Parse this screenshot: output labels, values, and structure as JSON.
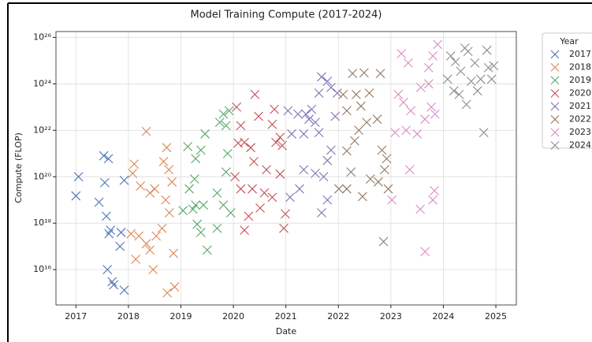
{
  "chart_data": {
    "type": "scatter",
    "title": "Model Training Compute (2017-2024)",
    "x_label": "Date",
    "y_label": "Compute (FLOP)",
    "legend_title": "Year",
    "legend": "outside-right",
    "grid": true,
    "y_log": true,
    "xlim": [
      2016.62,
      2025.39
    ],
    "xticks": [
      2017,
      2018,
      2019,
      2020,
      2021,
      2022,
      2023,
      2024,
      2025
    ],
    "ylim": [
      300000000000000.0,
      1.8e+26
    ],
    "yticks": [
      {
        "value": 1e+16,
        "label": "10¹⁶"
      },
      {
        "value": 1e+18,
        "label": "10¹⁸"
      },
      {
        "value": 1e+20,
        "label": "10²⁰"
      },
      {
        "value": 1e+22,
        "label": "10²²"
      },
      {
        "value": 1e+24,
        "label": "10²⁴"
      },
      {
        "value": 1e+26,
        "label": "10²⁶"
      }
    ],
    "series": [
      {
        "name": "2017",
        "color": "#4c72b0",
        "x": [
          2017.0,
          2017.05,
          2017.44,
          2017.53,
          2017.62,
          2017.55,
          2017.58,
          2017.63,
          2017.6,
          2017.69,
          2017.72,
          2017.86,
          2017.84,
          2017.92,
          2017.92,
          2017.66
        ],
        "values": [
          1.5e+19,
          1e+20,
          8e+18,
          8e+20,
          6e+20,
          5.6e+19,
          2e+18,
          3.5e+17,
          1e+16,
          3000000000000000.0,
          2200000000000000.0,
          4e+17,
          1e+17,
          7e+19,
          1300000000000000.0,
          5e+17
        ]
      },
      {
        "name": "2018",
        "color": "#dd8452",
        "x": [
          2018.11,
          2018.08,
          2018.23,
          2018.34,
          2018.41,
          2018.5,
          2018.05,
          2018.14,
          2018.2,
          2018.34,
          2018.41,
          2018.47,
          2018.53,
          2018.64,
          2018.67,
          2018.73,
          2018.77,
          2018.83,
          2018.78,
          2018.74,
          2018.88,
          2018.86,
          2018.71
        ],
        "values": [
          3.5e+20,
          1.4e+20,
          4e+19,
          9e+21,
          2e+19,
          3e+19,
          3.5e+17,
          2.8e+16,
          2.8e+17,
          1.3e+17,
          7e+16,
          1e+16,
          2.8e+17,
          6e+17,
          4.5e+20,
          1.8e+21,
          2e+20,
          6e+19,
          2.8e+18,
          1000000000000000.0,
          1800000000000000.0,
          5e+16,
          1e+19
        ]
      },
      {
        "name": "2019",
        "color": "#55a868",
        "x": [
          2019.13,
          2019.28,
          2019.26,
          2019.16,
          2019.04,
          2019.23,
          2019.31,
          2019.38,
          2019.43,
          2019.5,
          2019.38,
          2019.46,
          2019.69,
          2019.74,
          2019.81,
          2019.92,
          2019.86,
          2019.89,
          2019.86,
          2019.95,
          2019.81,
          2019.69,
          2019.28
        ],
        "values": [
          2e+21,
          6e+20,
          8e+19,
          3e+19,
          3.5e+18,
          4e+18,
          9e+17,
          4e+17,
          6e+18,
          7e+16,
          1.4e+21,
          7e+21,
          2e+19,
          2.2e+22,
          5e+22,
          7e+22,
          1.6e+22,
          1e+21,
          1.6e+20,
          2.8e+18,
          6e+18,
          6e+17,
          6e+18
        ]
      },
      {
        "name": "2020",
        "color": "#c44e52",
        "x": [
          2020.06,
          2020.14,
          2020.09,
          2020.21,
          2020.33,
          2020.41,
          2020.48,
          2020.39,
          2020.03,
          2020.14,
          2020.21,
          2020.29,
          2020.36,
          2020.51,
          2020.59,
          2020.63,
          2020.78,
          2020.74,
          2020.81,
          2020.89,
          2020.93,
          2020.89,
          2020.99,
          2020.96,
          2020.74
        ],
        "values": [
          1e+23,
          1.6e+22,
          2.8e+21,
          3e+21,
          1.8e+21,
          3.5e+23,
          4e+22,
          4.5e+20,
          1e+20,
          3e+19,
          5e+17,
          2e+18,
          3e+19,
          4.5e+18,
          2e+19,
          2e+20,
          8e+22,
          1.8e+22,
          3e+21,
          5e+21,
          2.2e+21,
          1.3e+20,
          2.5e+18,
          6e+17,
          1.3e+19
        ]
      },
      {
        "name": "2021",
        "color": "#8172b3",
        "x": [
          2021.04,
          2021.11,
          2021.23,
          2021.34,
          2021.38,
          2021.44,
          2021.49,
          2021.56,
          2021.63,
          2021.68,
          2021.79,
          2021.86,
          2021.94,
          2021.86,
          2021.79,
          2021.72,
          2021.56,
          2021.34,
          2021.26,
          2021.08,
          2021.68,
          2021.79,
          2021.98,
          2021.63
        ],
        "values": [
          7e+22,
          7e+21,
          5e+22,
          7e+21,
          5e+22,
          3e+22,
          8e+22,
          2.2e+22,
          8e+21,
          2e+24,
          1.3e+24,
          7e+23,
          4e+22,
          1.4e+21,
          5e+20,
          1e+20,
          1.4e+20,
          2e+20,
          3e+19,
          1.3e+19,
          2.8e+18,
          1e+19,
          4e+23,
          4e+23
        ]
      },
      {
        "name": "2022",
        "color": "#937860",
        "x": [
          2022.09,
          2022.16,
          2022.27,
          2022.34,
          2022.43,
          2022.49,
          2022.59,
          2022.54,
          2022.39,
          2022.31,
          2022.16,
          2022.24,
          2022.01,
          2022.16,
          2022.46,
          2022.61,
          2022.76,
          2022.83,
          2022.88,
          2022.86,
          2022.8,
          2022.92,
          2022.95,
          2022.74
        ],
        "values": [
          3.5e+23,
          7e+22,
          2.8e+24,
          3.5e+23,
          1.1e+23,
          3e+24,
          4e+23,
          2.2e+22,
          1e+22,
          3.5e+21,
          1.3e+21,
          1.6e+20,
          3e+19,
          3e+19,
          1.4e+19,
          8e+19,
          6e+19,
          1.4e+21,
          2e+20,
          1.6e+17,
          2.8e+24,
          6e+20,
          3e+19,
          3e+22
        ]
      },
      {
        "name": "2023",
        "color": "#da8bc3",
        "x": [
          2023.2,
          2023.14,
          2023.24,
          2023.29,
          2023.33,
          2023.38,
          2023.5,
          2023.57,
          2023.65,
          2023.72,
          2023.8,
          2023.89,
          2023.84,
          2023.77,
          2023.36,
          2023.56,
          2023.65,
          2023.8,
          2023.83,
          2023.02,
          2023.08,
          2023.72
        ],
        "values": [
          2e+25,
          3.5e+23,
          1.6e+23,
          1e+22,
          8e+24,
          7e+22,
          7e+21,
          7e+23,
          3e+22,
          5e+24,
          1.6e+25,
          5e+25,
          5e+22,
          1e+23,
          2e+20,
          4e+18,
          6e+16,
          1e+19,
          2.5e+19,
          1e+19,
          8e+21,
          1e+24
        ]
      },
      {
        "name": "2024",
        "color": "#8c8c8c",
        "x": [
          2024.08,
          2024.14,
          2024.23,
          2024.33,
          2024.41,
          2024.47,
          2024.53,
          2024.6,
          2024.44,
          2024.2,
          2024.71,
          2024.83,
          2024.92,
          2024.96,
          2024.77,
          2024.86,
          2024.65,
          2024.3
        ],
        "values": [
          1.6e+24,
          1.6e+25,
          9e+24,
          3.5e+24,
          3.5e+25,
          2.5e+25,
          1.3e+24,
          8e+24,
          1.3e+23,
          5e+23,
          1.6e+24,
          2.8e+25,
          1.6e+24,
          6e+24,
          8e+21,
          5e+24,
          5e+23,
          3.5e+23
        ]
      }
    ]
  }
}
